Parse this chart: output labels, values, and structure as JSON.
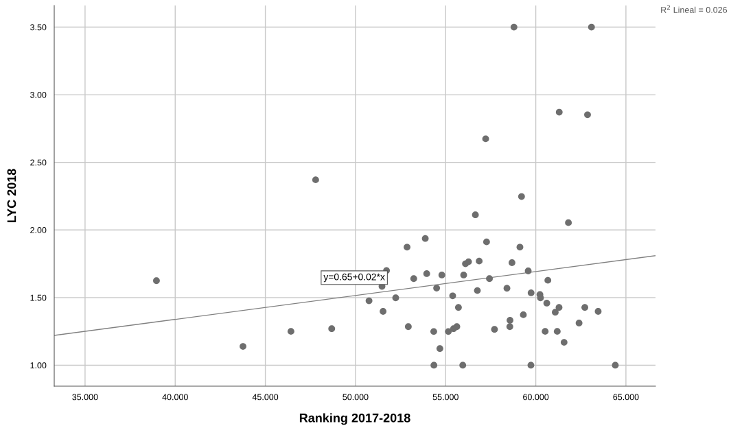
{
  "chart_data": {
    "type": "scatter",
    "xlabel": "Ranking 2017-2018",
    "ylabel": "LYC 2018",
    "xlim": [
      33.29,
      66.64
    ],
    "ylim": [
      0.845,
      3.66
    ],
    "xticks": [
      {
        "value": 35,
        "label": "35.000"
      },
      {
        "value": 40,
        "label": "40.000"
      },
      {
        "value": 45,
        "label": "45.000"
      },
      {
        "value": 50,
        "label": "50.000"
      },
      {
        "value": 55,
        "label": "55.000"
      },
      {
        "value": 60,
        "label": "60.000"
      },
      {
        "value": 65,
        "label": "65.000"
      }
    ],
    "yticks": [
      {
        "value": 1,
        "label": "1.00"
      },
      {
        "value": 1.5,
        "label": "1.50"
      },
      {
        "value": 2,
        "label": "2.00"
      },
      {
        "value": 2.5,
        "label": "2.50"
      },
      {
        "value": 3,
        "label": "3.00"
      },
      {
        "value": 3.5,
        "label": "3.50"
      }
    ],
    "grid": true,
    "marker": "circle",
    "series": [
      {
        "color": "#6e6e6e",
        "x": [
          38.96,
          43.76,
          46.42,
          48.68,
          47.79,
          50.75,
          51.53,
          51.47,
          51.72,
          52.23,
          52.86,
          52.93,
          53.23,
          53.87,
          53.95,
          54.34,
          54.35,
          54.5,
          54.68,
          54.79,
          55.15,
          55.39,
          55.44,
          55.62,
          55.71,
          55.95,
          56.0,
          56.1,
          56.27,
          56.65,
          56.76,
          56.86,
          57.22,
          57.27,
          57.43,
          57.71,
          58.4,
          58.56,
          58.57,
          58.68,
          58.79,
          59.12,
          59.21,
          59.31,
          59.58,
          59.73,
          59.74,
          60.23,
          60.26,
          60.52,
          60.61,
          60.67,
          61.08,
          61.19,
          61.29,
          61.3,
          61.57,
          61.81,
          62.4,
          62.72,
          62.87,
          63.09,
          63.46,
          64.41
        ],
        "values": [
          1.625,
          1.139,
          1.25,
          1.27,
          2.371,
          1.476,
          1.398,
          1.583,
          1.7,
          1.498,
          1.873,
          1.285,
          1.64,
          1.937,
          1.677,
          1.249,
          1.0,
          1.57,
          1.123,
          1.667,
          1.249,
          1.513,
          1.27,
          1.285,
          1.427,
          1.0,
          1.667,
          1.75,
          1.765,
          2.112,
          1.552,
          1.77,
          2.674,
          1.912,
          1.64,
          1.265,
          1.569,
          1.285,
          1.332,
          1.758,
          3.5,
          1.873,
          2.247,
          1.373,
          1.697,
          1.0,
          1.535,
          1.522,
          1.498,
          1.25,
          1.459,
          1.628,
          1.392,
          1.25,
          1.427,
          2.871,
          1.169,
          2.054,
          1.312,
          1.427,
          2.852,
          3.5,
          1.398,
          1.0
        ]
      },
      {
        "type": "line",
        "color": "#808080",
        "marker": "none",
        "x": [
          33.29,
          66.64
        ],
        "values": [
          1.22,
          1.81
        ]
      }
    ],
    "annotations": [
      "y=0.65+0.02*x",
      "R$^{2}$ Lineal = 0.026"
    ]
  }
}
